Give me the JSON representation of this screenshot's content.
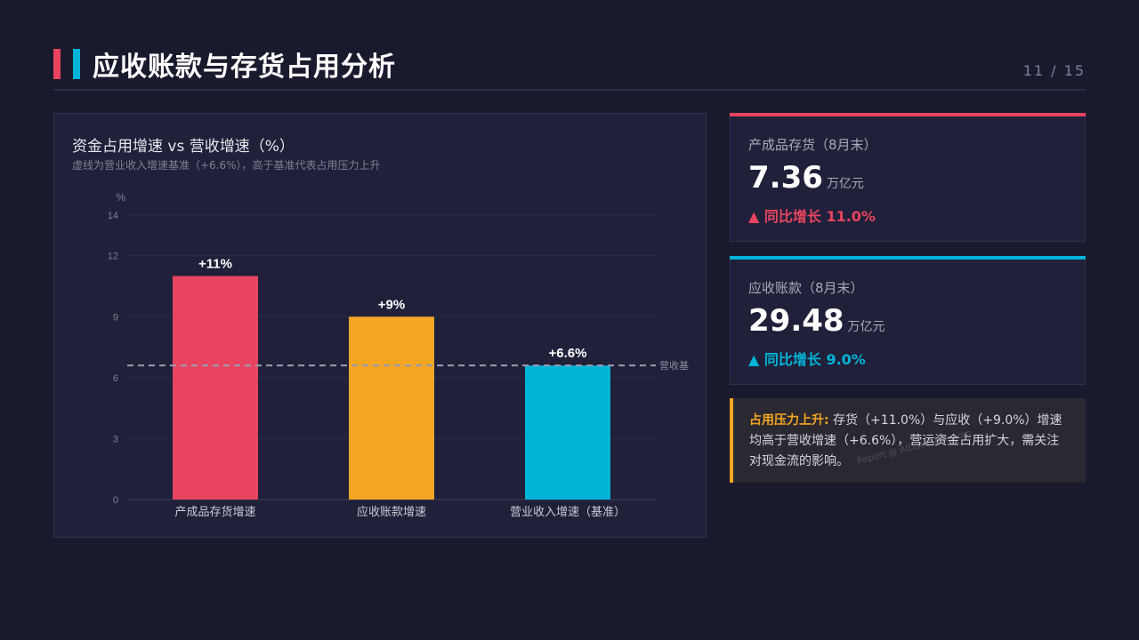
{
  "header": {
    "title": "应收账款与存货占用分析",
    "page": "11 / 15"
  },
  "colors": {
    "red": "#e8445f",
    "orange": "#f5a623",
    "cyan": "#00b4d8",
    "baseline": "#9a9db3"
  },
  "chart_data": {
    "type": "bar",
    "title": "资金占用增速 vs 营收增速（%）",
    "subtitle": "虚线为营业收入增速基准（+6.6%），高于基准代表占用压力上升",
    "ylabel": "%",
    "categories": [
      "产成品存货增速",
      "应收账款增速",
      "营业收入增速（基准）"
    ],
    "values": [
      11,
      9,
      6.6
    ],
    "data_labels": [
      "+11%",
      "+9%",
      "+6.6%"
    ],
    "bar_colors": [
      "#e8445f",
      "#f5a623",
      "#00b4d8"
    ],
    "yticks": [
      0,
      3,
      6,
      9,
      12,
      14
    ],
    "ylim": [
      0,
      14
    ],
    "baseline": {
      "value": 6.6,
      "label": "营收基"
    },
    "grid": true
  },
  "kpis": [
    {
      "label": "产成品存货（8月末）",
      "value": "7.36",
      "unit": "万亿元",
      "change": "▲ 同比增长 11.0%",
      "color": "#e8445f"
    },
    {
      "label": "应收账款（8月末）",
      "value": "29.48",
      "unit": "万亿元",
      "change": "▲ 同比增长 9.0%",
      "color": "#00b4d8"
    }
  ],
  "note": {
    "lead": "占用压力上升:",
    "text": " 存货（+11.0%）与应收（+9.0%）增速均高于营收增速（+6.6%），营运资金占用扩大，需关注对现金流的影响。"
  },
  "watermark": "Report @ AIDataSlide.com"
}
